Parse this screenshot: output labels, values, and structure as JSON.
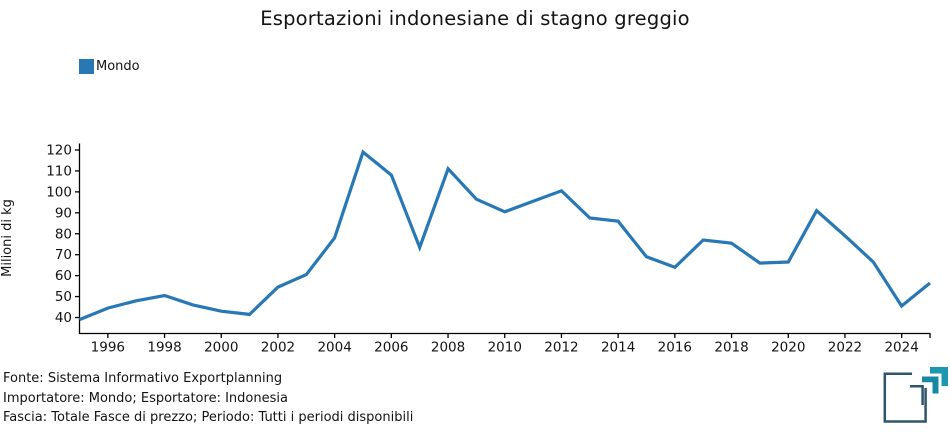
{
  "chart": {
    "title": "Esportazioni indonesiane di stagno greggio",
    "ylabel": "Milioni di kg",
    "legend": [
      {
        "label": "Mondo",
        "color": "#2878b5"
      }
    ]
  },
  "chart_data": {
    "type": "line",
    "title": "Esportazioni indonesiane di stagno greggio",
    "xlabel": "",
    "ylabel": "Milioni di kg",
    "legend_position": "top-left",
    "grid": false,
    "x": [
      1995,
      1996,
      1997,
      1998,
      1999,
      2000,
      2001,
      2002,
      2003,
      2004,
      2005,
      2006,
      2007,
      2008,
      2009,
      2010,
      2011,
      2012,
      2013,
      2014,
      2015,
      2016,
      2017,
      2018,
      2019,
      2020,
      2021,
      2022,
      2023,
      2024,
      2025
    ],
    "series": [
      {
        "name": "Mondo",
        "color": "#2878b5",
        "values": [
          39,
          44.5,
          48,
          50.5,
          46,
          43,
          41.5,
          54.5,
          60.5,
          78,
          119,
          108,
          73.5,
          111,
          96.5,
          90.5,
          95.5,
          100.5,
          87.5,
          86,
          69,
          64,
          77,
          75.5,
          66,
          66.5,
          91,
          79,
          66.5,
          45.5,
          56.5
        ]
      }
    ],
    "xlim": [
      1995,
      2025
    ],
    "ylim": [
      32.5,
      123
    ],
    "xticks": [
      1996,
      1998,
      2000,
      2002,
      2004,
      2006,
      2008,
      2010,
      2012,
      2014,
      2016,
      2018,
      2020,
      2022,
      2024
    ],
    "yticks": [
      40,
      50,
      60,
      70,
      80,
      90,
      100,
      110,
      120
    ]
  },
  "footer": {
    "line1": "Fonte: Sistema Informativo Exportplanning",
    "line2": "Importatore: Mondo; Esportatore: Indonesia",
    "line3": "Fascia: Totale Fasce di prezzo; Periodo: Tutti i periodi disponibili"
  },
  "logo": {
    "label": "exportplanning-logo",
    "colors": {
      "dark": "#2e566b",
      "teal_mid": "#1787a3",
      "teal_bright": "#1b97b0"
    }
  }
}
